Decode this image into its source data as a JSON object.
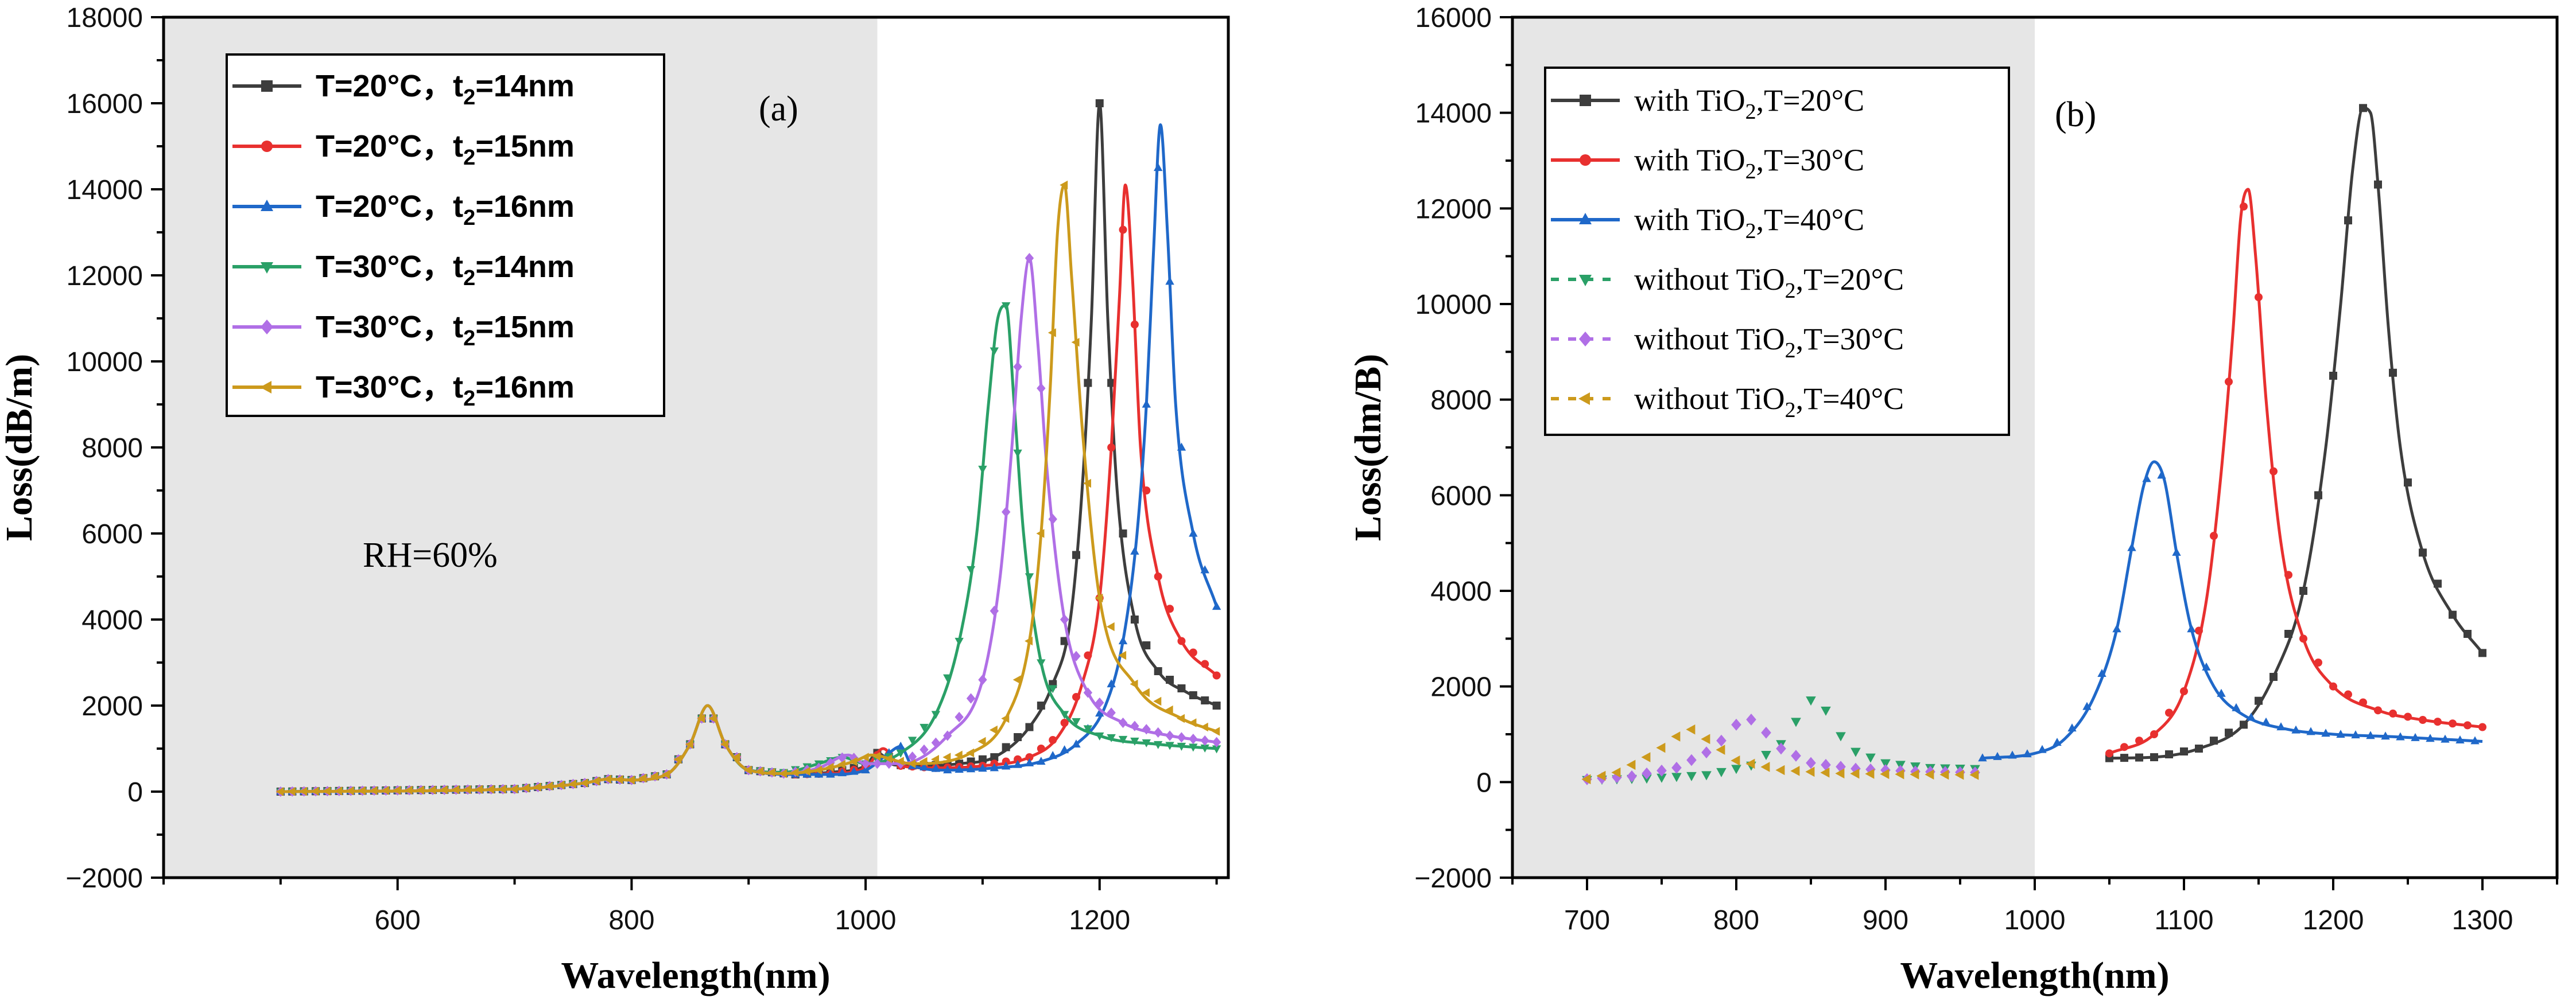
{
  "figure": {
    "panel_a": {
      "label": "(a)",
      "annotation": "RH=60%"
    },
    "panel_b": {
      "label": "(b)"
    }
  },
  "chart_data": [
    {
      "type": "line",
      "panel": "(a)",
      "xlabel": "Wavelength(nm)",
      "ylabel": "Loss(dB/m)",
      "xlim": [
        400,
        1310
      ],
      "ylim": [
        -2000,
        18000
      ],
      "x_ticks": [
        600,
        800,
        1000,
        1200
      ],
      "y_ticks": [
        -2000,
        0,
        2000,
        4000,
        6000,
        8000,
        10000,
        12000,
        14000,
        16000,
        18000
      ],
      "shaded_region": {
        "x_from": 400,
        "x_to": 1010,
        "color": "#e6e6e6"
      },
      "legend_position": "top-left",
      "annotations": [
        "(a)",
        "RH=60%"
      ],
      "colors": [
        "#3d3d3d",
        "#e8302f",
        "#1f68c9",
        "#2aa067",
        "#b06fe6",
        "#cc9a1c"
      ],
      "markers": [
        "square",
        "circle",
        "triangle-up",
        "triangle-down",
        "diamond",
        "triangle-left"
      ],
      "series": [
        {
          "name": "T=20°C，t2=14nm",
          "legend": {
            "pre": "T=20°C，t",
            "sub": "2",
            "post": "=14nm"
          },
          "color": "#3d3d3d",
          "marker": "square",
          "x": [
            500,
            700,
            760,
            780,
            800,
            830,
            850,
            865,
            880,
            900,
            940,
            970,
            1000,
            1010,
            1025,
            1050,
            1080,
            1110,
            1140,
            1160,
            1175,
            1185,
            1193,
            1200,
            1207,
            1215,
            1230,
            1250,
            1275,
            1300
          ],
          "y": [
            0,
            60,
            200,
            290,
            270,
            400,
            1100,
            2000,
            1100,
            500,
            400,
            450,
            600,
            900,
            620,
            600,
            650,
            800,
            1500,
            2500,
            4000,
            7000,
            11000,
            16000,
            11000,
            7000,
            4000,
            2800,
            2300,
            2000
          ]
        },
        {
          "name": "T=20°C，t2=15nm",
          "legend": {
            "pre": "T=20°C，t",
            "sub": "2",
            "post": "=15nm"
          },
          "color": "#e8302f",
          "marker": "circle",
          "x": [
            500,
            700,
            760,
            780,
            800,
            830,
            850,
            865,
            880,
            900,
            940,
            970,
            1000,
            1015,
            1030,
            1060,
            1100,
            1140,
            1165,
            1185,
            1200,
            1210,
            1217,
            1222,
            1228,
            1235,
            1250,
            1270,
            1300
          ],
          "y": [
            0,
            60,
            200,
            290,
            270,
            400,
            1100,
            2000,
            1100,
            500,
            400,
            420,
            550,
            1000,
            600,
            550,
            600,
            800,
            1300,
            2500,
            4500,
            8000,
            11500,
            14100,
            12000,
            8000,
            5000,
            3500,
            2700
          ]
        },
        {
          "name": "T=20°C，t2=16nm",
          "legend": {
            "pre": "T=20°C，t",
            "sub": "2",
            "post": "=16nm"
          },
          "color": "#1f68c9",
          "marker": "triangle-up",
          "x": [
            500,
            700,
            760,
            780,
            800,
            830,
            850,
            865,
            880,
            900,
            940,
            970,
            1000,
            1020,
            1030,
            1040,
            1070,
            1110,
            1150,
            1180,
            1205,
            1220,
            1232,
            1240,
            1246,
            1252,
            1258,
            1265,
            1280,
            1300
          ],
          "y": [
            0,
            60,
            200,
            290,
            270,
            400,
            1100,
            2000,
            1100,
            500,
            400,
            400,
            500,
            900,
            1050,
            600,
            500,
            550,
            700,
            1100,
            2000,
            3500,
            6000,
            9000,
            12500,
            15500,
            13000,
            9000,
            6000,
            4300
          ]
        },
        {
          "name": "T=30°C，t2=14nm",
          "legend": {
            "pre": "T=30°C，t",
            "sub": "2",
            "post": "=14nm"
          },
          "color": "#2aa067",
          "marker": "triangle-down",
          "x": [
            500,
            700,
            760,
            780,
            800,
            830,
            850,
            865,
            880,
            900,
            930,
            960,
            980,
            1000,
            1030,
            1060,
            1080,
            1095,
            1105,
            1113,
            1120,
            1127,
            1135,
            1150,
            1170,
            1200,
            1250,
            1300
          ],
          "y": [
            0,
            60,
            200,
            290,
            270,
            400,
            1100,
            2000,
            1100,
            500,
            450,
            650,
            800,
            650,
            900,
            1800,
            3500,
            6000,
            9000,
            11000,
            11300,
            9000,
            6000,
            3000,
            1800,
            1300,
            1100,
            1000
          ]
        },
        {
          "name": "T=30°C，t2=15nm",
          "legend": {
            "pre": "T=30°C，t",
            "sub": "2",
            "post": "=15nm"
          },
          "color": "#b06fe6",
          "marker": "diamond",
          "x": [
            500,
            700,
            760,
            780,
            800,
            830,
            850,
            865,
            880,
            900,
            930,
            960,
            985,
            1000,
            1030,
            1070,
            1100,
            1115,
            1125,
            1133,
            1140,
            1147,
            1155,
            1170,
            1190,
            1220,
            1260,
            1300
          ],
          "y": [
            0,
            60,
            200,
            290,
            270,
            400,
            1100,
            2000,
            1100,
            500,
            420,
            550,
            850,
            650,
            650,
            1300,
            2600,
            5000,
            8000,
            11000,
            12400,
            10500,
            7500,
            4000,
            2300,
            1600,
            1300,
            1150
          ]
        },
        {
          "name": "T=30°C，t2=16nm",
          "legend": {
            "pre": "T=30°C，t",
            "sub": "2",
            "post": "=16nm"
          },
          "color": "#cc9a1c",
          "marker": "triangle-left",
          "x": [
            500,
            700,
            760,
            780,
            800,
            830,
            850,
            865,
            880,
            900,
            930,
            960,
            990,
            1005,
            1040,
            1090,
            1120,
            1140,
            1150,
            1158,
            1164,
            1170,
            1176,
            1185,
            1200,
            1230,
            1270,
            1300
          ],
          "y": [
            0,
            60,
            200,
            290,
            270,
            400,
            1100,
            2000,
            1100,
            500,
            420,
            500,
            700,
            850,
            650,
            900,
            1700,
            3500,
            6000,
            9500,
            13000,
            14100,
            12000,
            8500,
            4500,
            2500,
            1700,
            1400
          ]
        }
      ]
    },
    {
      "type": "line",
      "panel": "(b)",
      "xlabel": "Wavelength(nm)",
      "ylabel": "Loss(dm/B)",
      "xlim": [
        650,
        1350
      ],
      "ylim": [
        -2000,
        16000
      ],
      "x_ticks": [
        700,
        800,
        900,
        1000,
        1100,
        1200,
        1300
      ],
      "y_ticks": [
        -2000,
        0,
        2000,
        4000,
        6000,
        8000,
        10000,
        12000,
        14000,
        16000
      ],
      "shaded_region": {
        "x_from": 650,
        "x_to": 1000,
        "color": "#e6e6e6"
      },
      "legend_position": "top-left",
      "annotations": [
        "(b)"
      ],
      "series": [
        {
          "name": "with TiO2,T=20°C",
          "legend": {
            "pre": "with TiO",
            "sub": "2",
            "post": ",T=20°C"
          },
          "color": "#3d3d3d",
          "marker": "square",
          "dashed": false,
          "x": [
            1050,
            1080,
            1110,
            1140,
            1160,
            1180,
            1195,
            1205,
            1213,
            1220,
            1225,
            1230,
            1237,
            1245,
            1260,
            1280,
            1300
          ],
          "y": [
            500,
            520,
            700,
            1200,
            2200,
            4000,
            7000,
            10000,
            12800,
            14100,
            14000,
            12500,
            9500,
            7000,
            4800,
            3500,
            2700
          ]
        },
        {
          "name": "with TiO2,T=30°C",
          "legend": {
            "pre": "with TiO",
            "sub": "2",
            "post": ",T=30°C"
          },
          "color": "#e8302f",
          "marker": "circle",
          "dashed": false,
          "x": [
            1050,
            1080,
            1100,
            1115,
            1125,
            1133,
            1138,
            1143,
            1148,
            1155,
            1165,
            1180,
            1200,
            1230,
            1260,
            1300
          ],
          "y": [
            600,
            1000,
            1900,
            3800,
            6500,
            9500,
            11800,
            12400,
            11000,
            8000,
            5000,
            3000,
            2000,
            1500,
            1300,
            1150
          ]
        },
        {
          "name": "with TiO2,T=40°C",
          "legend": {
            "pre": "with TiO",
            "sub": "2",
            "post": ",T=40°C"
          },
          "color": "#1f68c9",
          "marker": "triangle-up",
          "dashed": false,
          "x": [
            965,
            1000,
            1020,
            1040,
            1055,
            1065,
            1073,
            1080,
            1087,
            1095,
            1105,
            1120,
            1140,
            1170,
            1200,
            1240,
            1300
          ],
          "y": [
            500,
            600,
            900,
            1800,
            3200,
            4900,
            6200,
            6700,
            6300,
            4800,
            3200,
            2000,
            1400,
            1100,
            1000,
            950,
            850
          ]
        },
        {
          "name": "without TiO2,T=20°C",
          "legend": {
            "pre": "without TiO",
            "sub": "2",
            "post": ",T=20°C"
          },
          "color": "#2aa067",
          "marker": "triangle-down",
          "dashed": true,
          "x": [
            700,
            740,
            780,
            810,
            830,
            845,
            852,
            860,
            875,
            900,
            930,
            960
          ],
          "y": [
            50,
            80,
            150,
            350,
            800,
            1500,
            1800,
            1500,
            700,
            400,
            300,
            280
          ]
        },
        {
          "name": "without TiO2,T=30°C",
          "legend": {
            "pre": "without TiO",
            "sub": "2",
            "post": ",T=30°C"
          },
          "color": "#b06fe6",
          "marker": "diamond",
          "dashed": true,
          "x": [
            700,
            730,
            760,
            785,
            800,
            808,
            815,
            830,
            850,
            880,
            920,
            960
          ],
          "y": [
            60,
            120,
            300,
            700,
            1200,
            1350,
            1200,
            700,
            400,
            280,
            220,
            200
          ]
        },
        {
          "name": "without TiO2,T=40°C",
          "legend": {
            "pre": "without TiO",
            "sub": "2",
            "post": ",T=40°C"
          },
          "color": "#cc9a1c",
          "marker": "triangle-left",
          "dashed": true,
          "x": [
            700,
            720,
            745,
            762,
            770,
            780,
            800,
            830,
            870,
            920,
            960
          ],
          "y": [
            60,
            200,
            600,
            1000,
            1100,
            900,
            450,
            250,
            180,
            160,
            150
          ]
        }
      ]
    }
  ]
}
